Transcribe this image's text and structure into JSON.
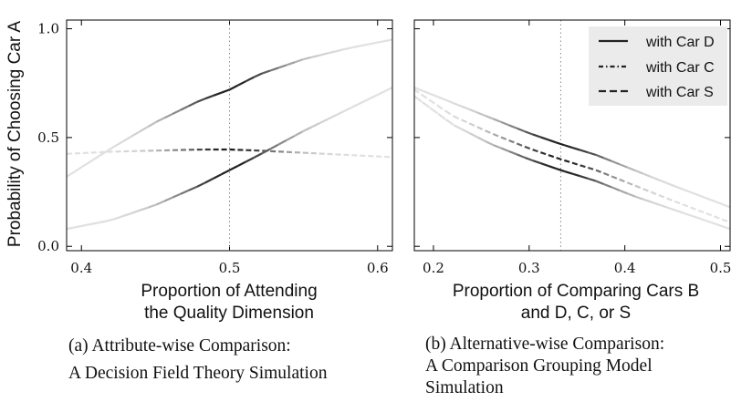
{
  "y_axis_label": "Probability of Choosing Car A",
  "chart_data": [
    {
      "type": "line",
      "id": "a",
      "xlabel": [
        "Proportion of Attending",
        "the Quality Dimension"
      ],
      "caption": [
        "(a) Attribute-wise Comparison:",
        "A Decision Field Theory Simulation"
      ],
      "xlim": [
        0.39,
        0.61
      ],
      "ylim": [
        -0.02,
        1.04
      ],
      "xticks": [
        0.4,
        0.5,
        0.6
      ],
      "xtick_labels": [
        "0.4",
        "0.5",
        "0.6"
      ],
      "yticks": [
        0.0,
        0.5,
        1.0
      ],
      "ytick_labels": [
        "0.0",
        "0.5",
        "1.0"
      ],
      "reference_x": 0.5,
      "grid": false,
      "series": [
        {
          "style": "solid",
          "x": [
            0.39,
            0.42,
            0.45,
            0.48,
            0.5,
            0.52,
            0.55,
            0.58,
            0.61
          ],
          "y": [
            0.32,
            0.45,
            0.57,
            0.67,
            0.72,
            0.79,
            0.86,
            0.91,
            0.95
          ]
        },
        {
          "style": "dashdot",
          "x": [
            0.39,
            0.42,
            0.45,
            0.48,
            0.5,
            0.52,
            0.55,
            0.58,
            0.61
          ],
          "y": [
            0.425,
            0.435,
            0.44,
            0.445,
            0.445,
            0.44,
            0.43,
            0.42,
            0.41
          ]
        },
        {
          "style": "dashed",
          "x": [
            0.39,
            0.42,
            0.45,
            0.48,
            0.5,
            0.52,
            0.55,
            0.58,
            0.61
          ],
          "y": [
            0.08,
            0.12,
            0.19,
            0.28,
            0.35,
            0.42,
            0.53,
            0.63,
            0.73
          ]
        }
      ]
    },
    {
      "type": "line",
      "id": "b",
      "xlabel": [
        "Proportion of Comparing Cars B",
        "and D, C, or S"
      ],
      "caption": [
        "(b) Alternative-wise Comparison:",
        "A Comparison Grouping Model",
        "Simulation"
      ],
      "xlim": [
        0.18,
        0.51
      ],
      "ylim": [
        -0.02,
        1.04
      ],
      "xticks": [
        0.2,
        0.3,
        0.4,
        0.5
      ],
      "xtick_labels": [
        "0.2",
        "0.3",
        "0.4",
        "0.5"
      ],
      "reference_x": 0.333,
      "grid": false,
      "legend": {
        "position": "top-right",
        "entries": [
          "with Car D",
          "with Car C",
          "with Car S"
        ],
        "styles": [
          "solid",
          "dashdot",
          "dashed"
        ]
      },
      "series": [
        {
          "name": "with Car D",
          "style": "solid",
          "x": [
            0.18,
            0.22,
            0.26,
            0.3,
            0.333,
            0.37,
            0.41,
            0.45,
            0.51
          ],
          "y": [
            0.73,
            0.66,
            0.59,
            0.52,
            0.47,
            0.42,
            0.35,
            0.28,
            0.18
          ]
        },
        {
          "name": "with Car C",
          "style": "dashdot",
          "x": [
            0.18,
            0.22,
            0.26,
            0.3,
            0.333,
            0.37,
            0.41,
            0.45,
            0.51
          ],
          "y": [
            0.72,
            0.6,
            0.52,
            0.45,
            0.4,
            0.35,
            0.28,
            0.21,
            0.11
          ]
        },
        {
          "name": "with Car S",
          "style": "dashed",
          "x": [
            0.18,
            0.22,
            0.26,
            0.3,
            0.333,
            0.37,
            0.41,
            0.45,
            0.51
          ],
          "y": [
            0.69,
            0.56,
            0.47,
            0.4,
            0.35,
            0.3,
            0.23,
            0.17,
            0.08
          ]
        }
      ]
    }
  ]
}
